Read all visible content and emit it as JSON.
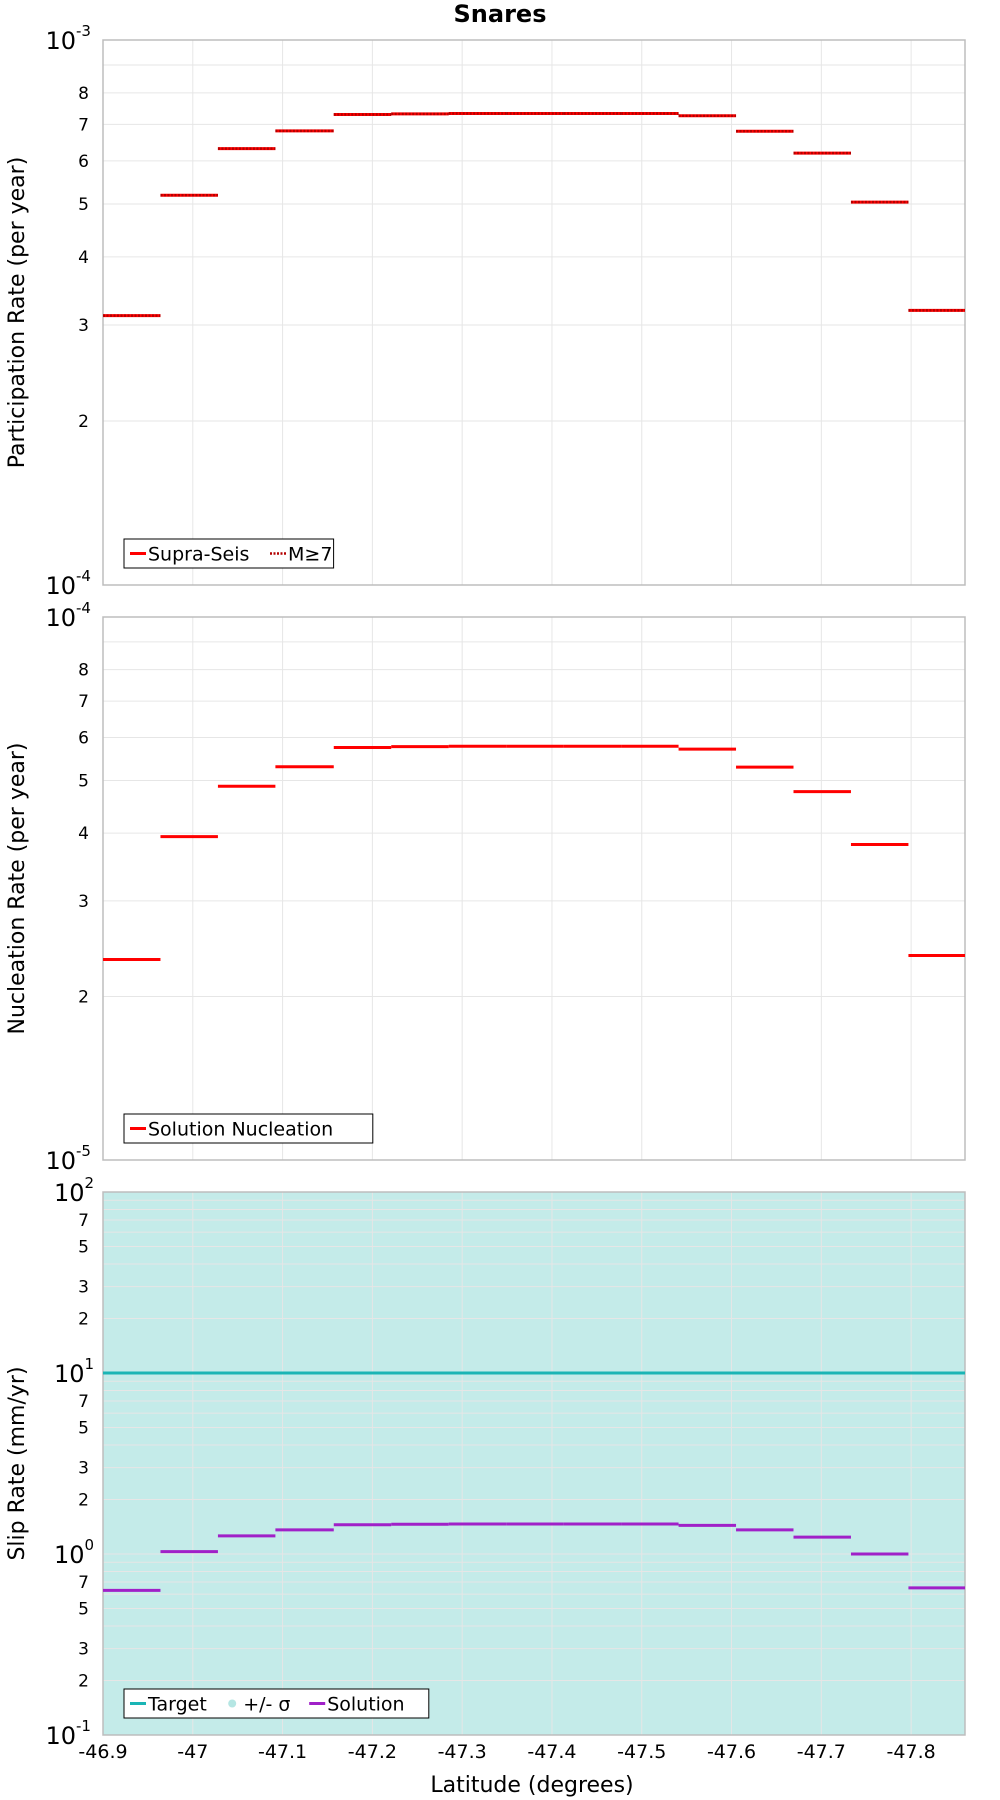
{
  "title": "Snares",
  "xlabel": "Latitude (degrees)",
  "colors": {
    "red": "#ff0000",
    "target": "#1ab5b5",
    "sigma_fill": "#c4ebe9",
    "sigma_marker": "#b5e6e3",
    "solution": "#a020c8",
    "grid": "#e6e6e6",
    "frame": "#bdbdbd"
  },
  "chart_data": [
    {
      "type": "line",
      "panel": "participation",
      "ylabel": "Participation Rate (per year)",
      "yscale": "log",
      "ylim": [
        0.0001,
        0.001
      ],
      "xlim": [
        -46.9,
        -47.86
      ],
      "x_ticks": [
        "-46.9",
        "-47",
        "-47.1",
        "-47.2",
        "-47.3",
        "-47.4",
        "-47.5",
        "-47.6",
        "-47.7",
        "-47.8"
      ],
      "y_major_labels": [
        {
          "base": "10",
          "exp": "-3"
        },
        {
          "base": "10",
          "exp": "-4"
        }
      ],
      "y_minor_labels": [
        "8",
        "7",
        "6",
        "5",
        "4",
        "3",
        "2"
      ],
      "grid": true,
      "legend_position": "bottom-left",
      "legend": [
        "Supra-Seis",
        "M≥7"
      ],
      "series": [
        {
          "name": "Supra-Seis",
          "style": "solid",
          "color": "#ff0000",
          "segments": [
            [
              -46.9,
              -46.964,
              0.000312
            ],
            [
              -46.964,
              -47.028,
              0.000519
            ],
            [
              -47.028,
              -47.092,
              0.000632
            ],
            [
              -47.092,
              -47.157,
              0.000681
            ],
            [
              -47.157,
              -47.221,
              0.00073
            ],
            [
              -47.221,
              -47.285,
              0.000732
            ],
            [
              -47.285,
              -47.349,
              0.000733
            ],
            [
              -47.349,
              -47.413,
              0.000733
            ],
            [
              -47.413,
              -47.477,
              0.000733
            ],
            [
              -47.477,
              -47.541,
              0.000733
            ],
            [
              -47.541,
              -47.605,
              0.000726
            ],
            [
              -47.605,
              -47.669,
              0.00068
            ],
            [
              -47.669,
              -47.733,
              0.00062
            ],
            [
              -47.733,
              -47.797,
              0.000504
            ],
            [
              -47.797,
              -47.86,
              0.000319
            ]
          ]
        },
        {
          "name": "M≥7",
          "style": "dotted",
          "color": "#ff0000",
          "segments": [
            [
              -46.9,
              -46.964,
              0.000312
            ],
            [
              -46.964,
              -47.028,
              0.000519
            ],
            [
              -47.028,
              -47.092,
              0.000632
            ],
            [
              -47.092,
              -47.157,
              0.000681
            ],
            [
              -47.157,
              -47.221,
              0.00073
            ],
            [
              -47.221,
              -47.285,
              0.000732
            ],
            [
              -47.285,
              -47.349,
              0.000733
            ],
            [
              -47.349,
              -47.413,
              0.000733
            ],
            [
              -47.413,
              -47.477,
              0.000733
            ],
            [
              -47.477,
              -47.541,
              0.000733
            ],
            [
              -47.541,
              -47.605,
              0.000726
            ],
            [
              -47.605,
              -47.669,
              0.00068
            ],
            [
              -47.669,
              -47.733,
              0.00062
            ],
            [
              -47.733,
              -47.797,
              0.000504
            ],
            [
              -47.797,
              -47.86,
              0.000319
            ]
          ]
        }
      ]
    },
    {
      "type": "line",
      "panel": "nucleation",
      "ylabel": "Nucleation Rate (per year)",
      "yscale": "log",
      "ylim": [
        1e-05,
        0.0001
      ],
      "xlim": [
        -46.9,
        -47.86
      ],
      "x_ticks": [
        "-46.9",
        "-47",
        "-47.1",
        "-47.2",
        "-47.3",
        "-47.4",
        "-47.5",
        "-47.6",
        "-47.7",
        "-47.8"
      ],
      "y_major_labels": [
        {
          "base": "10",
          "exp": "-4"
        },
        {
          "base": "10",
          "exp": "-5"
        }
      ],
      "y_minor_labels": [
        "8",
        "7",
        "6",
        "5",
        "4",
        "3",
        "2"
      ],
      "grid": true,
      "legend_position": "bottom-left",
      "legend": [
        "Solution Nucleation"
      ],
      "series": [
        {
          "name": "Solution Nucleation",
          "style": "solid",
          "color": "#ff0000",
          "segments": [
            [
              -46.9,
              -46.964,
              2.34e-05
            ],
            [
              -46.964,
              -47.028,
              3.94e-05
            ],
            [
              -47.028,
              -47.092,
              4.88e-05
            ],
            [
              -47.092,
              -47.157,
              5.3e-05
            ],
            [
              -47.157,
              -47.221,
              5.75e-05
            ],
            [
              -47.221,
              -47.285,
              5.77e-05
            ],
            [
              -47.285,
              -47.349,
              5.78e-05
            ],
            [
              -47.349,
              -47.413,
              5.78e-05
            ],
            [
              -47.413,
              -47.477,
              5.78e-05
            ],
            [
              -47.477,
              -47.541,
              5.78e-05
            ],
            [
              -47.541,
              -47.605,
              5.71e-05
            ],
            [
              -47.605,
              -47.669,
              5.29e-05
            ],
            [
              -47.669,
              -47.733,
              4.77e-05
            ],
            [
              -47.733,
              -47.797,
              3.81e-05
            ],
            [
              -47.797,
              -47.86,
              2.38e-05
            ]
          ]
        }
      ]
    },
    {
      "type": "line",
      "panel": "slip",
      "ylabel": "Slip Rate (mm/yr)",
      "yscale": "log",
      "ylim": [
        0.1,
        100
      ],
      "xlim": [
        -46.9,
        -47.86
      ],
      "x_ticks": [
        "-46.9",
        "-47",
        "-47.1",
        "-47.2",
        "-47.3",
        "-47.4",
        "-47.5",
        "-47.6",
        "-47.7",
        "-47.8"
      ],
      "y_major_labels": [
        {
          "base": "10",
          "exp": "2"
        },
        {
          "base": "10",
          "exp": "1"
        },
        {
          "base": "10",
          "exp": "0"
        },
        {
          "base": "10",
          "exp": "-1"
        }
      ],
      "y_minor_labels": [
        "7",
        "5",
        "3",
        "2",
        "7",
        "5",
        "3",
        "2",
        "7",
        "5",
        "3",
        "2"
      ],
      "grid": true,
      "legend_position": "bottom-left",
      "legend": [
        "Target",
        "+/- σ",
        "Solution"
      ],
      "sigma_band": [
        0.1,
        100
      ],
      "series": [
        {
          "name": "Target",
          "style": "solid",
          "color": "#1ab5b5",
          "segments": [
            [
              -46.9,
              -47.86,
              10
            ]
          ]
        },
        {
          "name": "Solution",
          "style": "solid",
          "color": "#a020c8",
          "segments": [
            [
              -46.9,
              -46.964,
              0.63
            ],
            [
              -46.964,
              -47.028,
              1.03
            ],
            [
              -47.028,
              -47.092,
              1.26
            ],
            [
              -47.092,
              -47.157,
              1.36
            ],
            [
              -47.157,
              -47.221,
              1.45
            ],
            [
              -47.221,
              -47.285,
              1.46
            ],
            [
              -47.285,
              -47.349,
              1.465
            ],
            [
              -47.349,
              -47.413,
              1.465
            ],
            [
              -47.413,
              -47.477,
              1.465
            ],
            [
              -47.477,
              -47.541,
              1.465
            ],
            [
              -47.541,
              -47.605,
              1.44
            ],
            [
              -47.605,
              -47.669,
              1.36
            ],
            [
              -47.669,
              -47.733,
              1.24
            ],
            [
              -47.733,
              -47.797,
              1.0
            ],
            [
              -47.797,
              -47.86,
              0.65
            ]
          ]
        }
      ]
    }
  ]
}
